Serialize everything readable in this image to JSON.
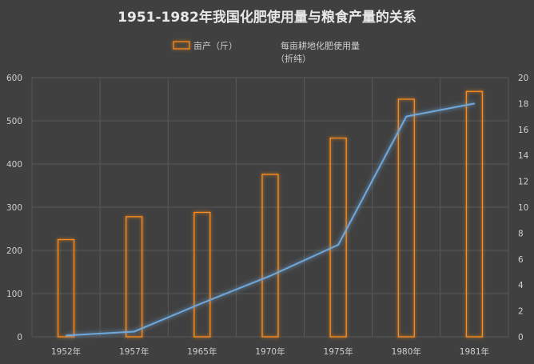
{
  "chart_data": {
    "type": "bar",
    "title": "1951-1982年我国化肥使用量与粮食产量的关系",
    "categories": [
      "1952年",
      "1957年",
      "1965年",
      "1970年",
      "1975年",
      "1980年",
      "1981年"
    ],
    "series": [
      {
        "name": "亩产（斤）",
        "type": "bar",
        "axis": "left",
        "values": [
          225,
          278,
          288,
          376,
          460,
          550,
          568
        ],
        "color": "#ff8c1a"
      },
      {
        "name": "每亩耕地化肥使用量（折纯）",
        "type": "line",
        "axis": "right",
        "values": [
          0.1,
          0.4,
          2.6,
          4.7,
          7.1,
          17.0,
          18.0
        ],
        "color": "#6fa8dc"
      }
    ],
    "y_left": {
      "min": 0,
      "max": 600,
      "step": 100,
      "ticks": [
        "0",
        "100",
        "200",
        "300",
        "400",
        "500",
        "600"
      ]
    },
    "y_right": {
      "min": 0,
      "max": 20,
      "step": 2,
      "ticks": [
        "0",
        "2",
        "4",
        "6",
        "8",
        "10",
        "12",
        "14",
        "16",
        "18",
        "20"
      ]
    },
    "grid": true,
    "legend_position": "top"
  },
  "colors": {
    "background": "#404040",
    "grid": "#595959",
    "text": "#cfcfcf",
    "title": "#e8e8e8"
  },
  "legend": {
    "bar_label": "亩产（斤）",
    "line_label_1": "每亩耕地化肥使用量",
    "line_label_2": "（折纯）"
  }
}
